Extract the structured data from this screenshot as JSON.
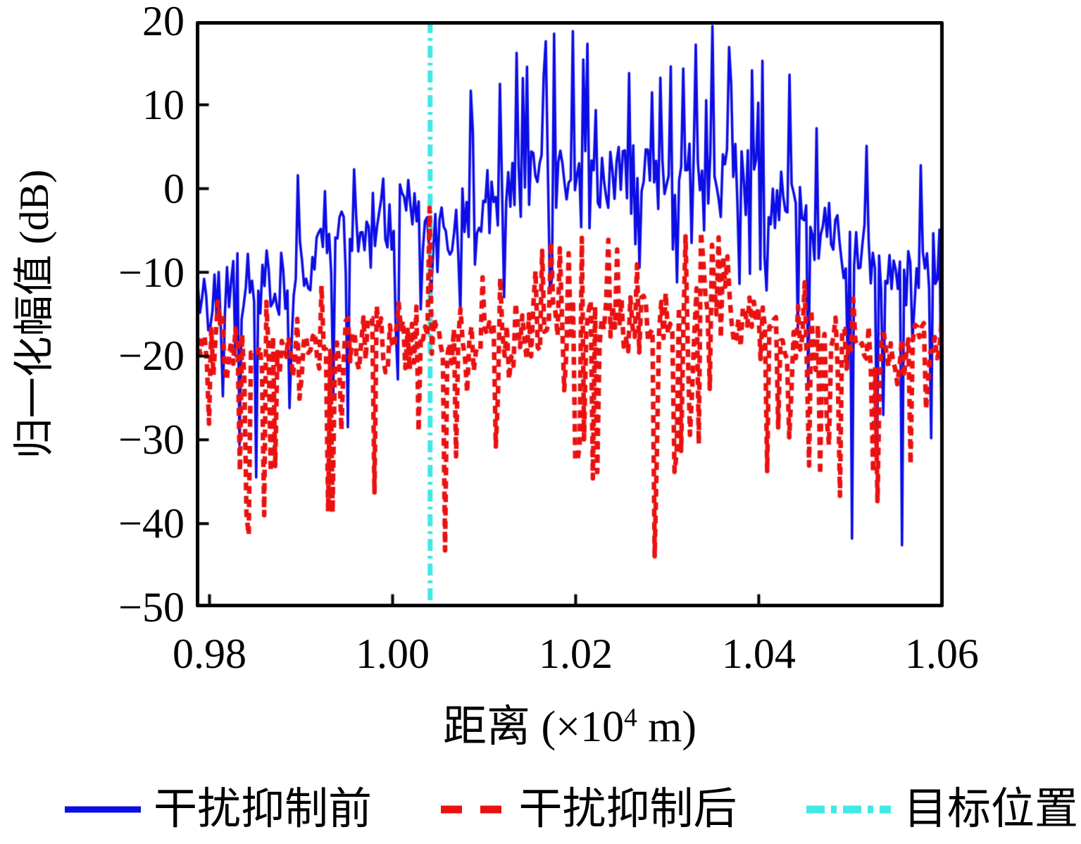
{
  "figure": {
    "ylabel": "归一化幅值 (dB)",
    "xlabel_prefix": "距离 (×10",
    "xlabel_sup": "4",
    "xlabel_suffix": " m)"
  },
  "legend": [
    {
      "label": "干扰抑制前",
      "style": "solid",
      "color": "#0d0de6",
      "sample_width": 108,
      "stroke_width": 9,
      "dash": ""
    },
    {
      "label": "干扰抑制后",
      "style": "dashed",
      "color": "#eb1111",
      "sample_width": 92,
      "stroke_width": 11,
      "dash": "30 26"
    },
    {
      "label": "目标位置",
      "style": "dashdot",
      "color": "#40e8e6",
      "sample_width": 120,
      "stroke_width": 11,
      "dash": "26 9 8 9"
    }
  ],
  "chart_data": {
    "type": "line",
    "title": "",
    "xlabel": "距离 (×10⁴ m)",
    "ylabel": "归一化幅值 (dB)",
    "xlim": [
      0.9785,
      1.0602
    ],
    "ylim": [
      -50,
      20
    ],
    "grid": false,
    "legend_position": "below",
    "xticks": [
      0.98,
      1.0,
      1.02,
      1.04,
      1.06
    ],
    "xtick_labels": [
      "0.98",
      "1.00",
      "1.02",
      "1.04",
      "1.06"
    ],
    "yticks": [
      20,
      10,
      0,
      -10,
      -20,
      -30,
      -40,
      -50
    ],
    "ytick_labels": [
      "20",
      "10",
      "0",
      "−10",
      "−20",
      "−30",
      "−40",
      "−50"
    ],
    "frame_color": "#000000",
    "frame_width": 5,
    "tick_len": 16,
    "tick_width": 4,
    "target": {
      "name": "目标位置",
      "x": 1.0041,
      "color": "#40e8e6",
      "width": 7,
      "dash": [
        17,
        7,
        4,
        7
      ]
    },
    "series": [
      {
        "name": "干扰抑制前",
        "color": "#0d0de6",
        "width": 3.6,
        "dash": [],
        "n": 360,
        "seed": 42,
        "noise_amp": 4.2,
        "trend": [
          [
            0.9785,
            -13
          ],
          [
            0.984,
            -12
          ],
          [
            0.9875,
            -11
          ],
          [
            0.991,
            -9
          ],
          [
            0.995,
            -6
          ],
          [
            0.998,
            -3.5
          ],
          [
            1.002,
            -3
          ],
          [
            1.0041,
            -7
          ],
          [
            1.006,
            -6
          ],
          [
            1.009,
            -2.5
          ],
          [
            1.013,
            0
          ],
          [
            1.017,
            1.5
          ],
          [
            1.021,
            2
          ],
          [
            1.026,
            1
          ],
          [
            1.031,
            2
          ],
          [
            1.036,
            2
          ],
          [
            1.04,
            0.5
          ],
          [
            1.044,
            -3
          ],
          [
            1.048,
            -6
          ],
          [
            1.052,
            -8
          ],
          [
            1.056,
            -10
          ],
          [
            1.0602,
            -9
          ]
        ],
        "up": {
          "prob": 0.05,
          "base": 3,
          "var": 4,
          "region": [
            1.008,
            1.043
          ],
          "prob_in": 0.1,
          "base_in": 7,
          "var_in": 10
        },
        "down": {
          "prob": 0.08,
          "base": 5,
          "var": 9,
          "var_edge": 20,
          "edge_lo": 0.996,
          "edge_hi": 1.044
        },
        "peaks": [
          [
            1.0118,
            12.5
          ],
          [
            1.0142,
            13.2
          ],
          [
            1.0168,
            17.6
          ],
          [
            1.0197,
            18.8
          ],
          [
            1.0213,
            17.3
          ],
          [
            1.0258,
            13.8
          ],
          [
            1.0284,
            11.5
          ],
          [
            1.0305,
            14.6
          ],
          [
            1.0332,
            17.2
          ],
          [
            1.0349,
            19.4
          ],
          [
            1.0367,
            16.9
          ],
          [
            1.0433,
            13.6
          ],
          [
            1.0088,
            6.8
          ],
          [
            0.9896,
            1.6
          ],
          [
            0.9927,
            -0.3
          ],
          [
            0.9959,
            2.3
          ],
          [
            0.9989,
            1.2
          ],
          [
            1.0463,
            7.2
          ],
          [
            1.0518,
            5.1
          ],
          [
            1.0578,
            2.8
          ]
        ],
        "dips": [
          [
            0.9815,
            -24.8
          ],
          [
            0.9833,
            -30.6
          ],
          [
            0.9887,
            -26.2
          ],
          [
            0.9936,
            -24.4
          ],
          [
            1.0006,
            -22.8
          ],
          [
            1.0043,
            -12.6
          ],
          [
            1.0075,
            -14.8
          ],
          [
            1.031,
            -11.2
          ],
          [
            1.0502,
            -41.8
          ],
          [
            1.0557,
            -42.6
          ],
          [
            1.0588,
            -29.8
          ]
        ]
      },
      {
        "name": "干扰抑制后",
        "color": "#eb1111",
        "width": 6.5,
        "dash": [
          11,
          8
        ],
        "n": 340,
        "seed": 7,
        "noise_amp": 3.8,
        "trend": [
          [
            0.9785,
            -19.5
          ],
          [
            0.985,
            -20
          ],
          [
            0.99,
            -20
          ],
          [
            0.995,
            -19
          ],
          [
            1.0,
            -18.5
          ],
          [
            1.005,
            -18
          ],
          [
            1.01,
            -18
          ],
          [
            1.015,
            -17
          ],
          [
            1.02,
            -15.5
          ],
          [
            1.025,
            -16.5
          ],
          [
            1.03,
            -16
          ],
          [
            1.035,
            -15
          ],
          [
            1.04,
            -16.5
          ],
          [
            1.045,
            -18
          ],
          [
            1.05,
            -19
          ],
          [
            1.055,
            -20
          ],
          [
            1.0602,
            -19.5
          ]
        ],
        "up": {
          "prob": 0.05,
          "base": 4,
          "var": 4,
          "region": [
            1.012,
            1.042
          ],
          "prob_in": 0.08,
          "base_in": 6,
          "var_in": 5
        },
        "down": {
          "prob": 0.1,
          "base": 4,
          "var": 14,
          "var_edge": 18,
          "edge_lo": 0.997,
          "edge_hi": 1.043
        },
        "peaks": [
          [
            1.0041,
            -2.3
          ],
          [
            1.0172,
            -6.4
          ],
          [
            1.0207,
            -5.9
          ],
          [
            1.0338,
            -5.2
          ],
          [
            1.0366,
            -8.1
          ],
          [
            0.9922,
            -11.6
          ],
          [
            1.0098,
            -10.6
          ],
          [
            1.0451,
            -11.2
          ],
          [
            0.9809,
            -13.5
          ]
        ],
        "dips": [
          [
            0.9868,
            -33.8
          ],
          [
            0.9935,
            -38.7
          ],
          [
            1.0057,
            -43.2
          ],
          [
            1.0112,
            -30.8
          ],
          [
            1.0218,
            -34.6
          ],
          [
            1.0287,
            -43.9
          ],
          [
            1.0433,
            -29.7
          ],
          [
            1.0565,
            -32.9
          ]
        ]
      }
    ]
  }
}
